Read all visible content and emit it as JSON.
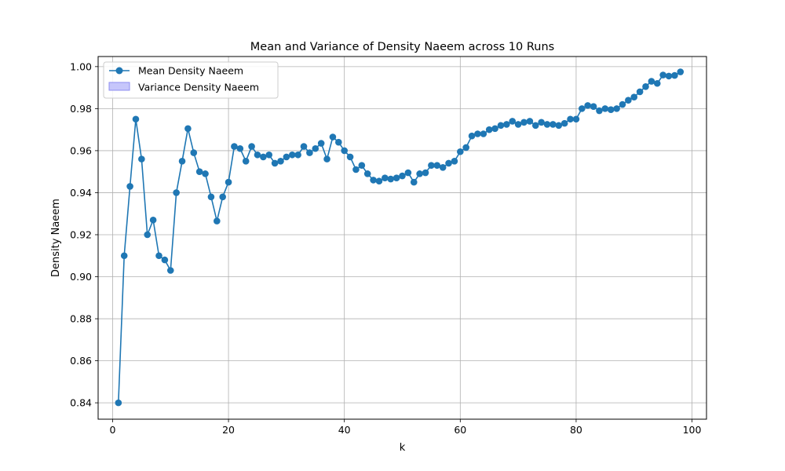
{
  "chart_data": {
    "type": "line",
    "title": "Mean and Variance of Density Naeem across 10 Runs",
    "xlabel": "k",
    "ylabel": "Density Naeem",
    "xlim": [
      -2.5,
      102.5
    ],
    "ylim": [
      0.8322,
      1.0048
    ],
    "xticks": [
      0,
      20,
      40,
      60,
      80,
      100
    ],
    "yticks": [
      0.84,
      0.86,
      0.88,
      0.9,
      0.92,
      0.94,
      0.96,
      0.98,
      1.0
    ],
    "xtick_labels": [
      "0",
      "20",
      "40",
      "60",
      "80",
      "100"
    ],
    "ytick_labels": [
      "0.84",
      "0.86",
      "0.88",
      "0.90",
      "0.92",
      "0.94",
      "0.96",
      "0.98",
      "1.00"
    ],
    "grid": true,
    "legend_position": "top-left",
    "colors": {
      "line": "#1f77b4",
      "variance_fill": "#c6c6fb",
      "variance_edge": "#8f8ff0",
      "grid": "#b0b0b0"
    },
    "series": [
      {
        "name": "Mean Density Naeem",
        "kind": "line",
        "x": [
          1,
          2,
          3,
          4,
          5,
          6,
          7,
          8,
          9,
          10,
          11,
          12,
          13,
          14,
          15,
          16,
          17,
          18,
          19,
          20,
          21,
          22,
          23,
          24,
          25,
          26,
          27,
          28,
          29,
          30,
          31,
          32,
          33,
          34,
          35,
          36,
          37,
          38,
          39,
          40,
          41,
          42,
          43,
          44,
          45,
          46,
          47,
          48,
          49,
          50,
          51,
          52,
          53,
          54,
          55,
          56,
          57,
          58,
          59,
          60,
          61,
          62,
          63,
          64,
          65,
          66,
          67,
          68,
          69,
          70,
          71,
          72,
          73,
          74,
          75,
          76,
          77,
          78,
          79,
          80,
          81,
          82,
          83,
          84,
          85,
          86,
          87,
          88,
          89,
          90,
          91,
          92,
          93,
          94,
          95,
          96,
          97,
          98
        ],
        "values": [
          0.84,
          0.91,
          0.943,
          0.975,
          0.956,
          0.92,
          0.927,
          0.91,
          0.908,
          0.903,
          0.94,
          0.955,
          0.9705,
          0.959,
          0.95,
          0.949,
          0.938,
          0.9265,
          0.938,
          0.945,
          0.962,
          0.961,
          0.955,
          0.962,
          0.958,
          0.957,
          0.958,
          0.954,
          0.955,
          0.957,
          0.958,
          0.958,
          0.962,
          0.959,
          0.961,
          0.9635,
          0.956,
          0.9665,
          0.964,
          0.96,
          0.957,
          0.951,
          0.953,
          0.949,
          0.946,
          0.9455,
          0.947,
          0.9465,
          0.947,
          0.948,
          0.9495,
          0.945,
          0.949,
          0.9495,
          0.953,
          0.953,
          0.952,
          0.954,
          0.955,
          0.9595,
          0.9615,
          0.967,
          0.968,
          0.968,
          0.97,
          0.9705,
          0.972,
          0.9725,
          0.974,
          0.9725,
          0.9735,
          0.974,
          0.972,
          0.9735,
          0.9725,
          0.9725,
          0.972,
          0.973,
          0.975,
          0.975,
          0.98,
          0.9815,
          0.981,
          0.979,
          0.98,
          0.9795,
          0.98,
          0.982,
          0.984,
          0.9855,
          0.988,
          0.9905,
          0.993,
          0.992,
          0.996,
          0.9955,
          0.9958,
          0.9975
        ]
      },
      {
        "name": "Variance Density Naeem",
        "kind": "band"
      }
    ]
  }
}
